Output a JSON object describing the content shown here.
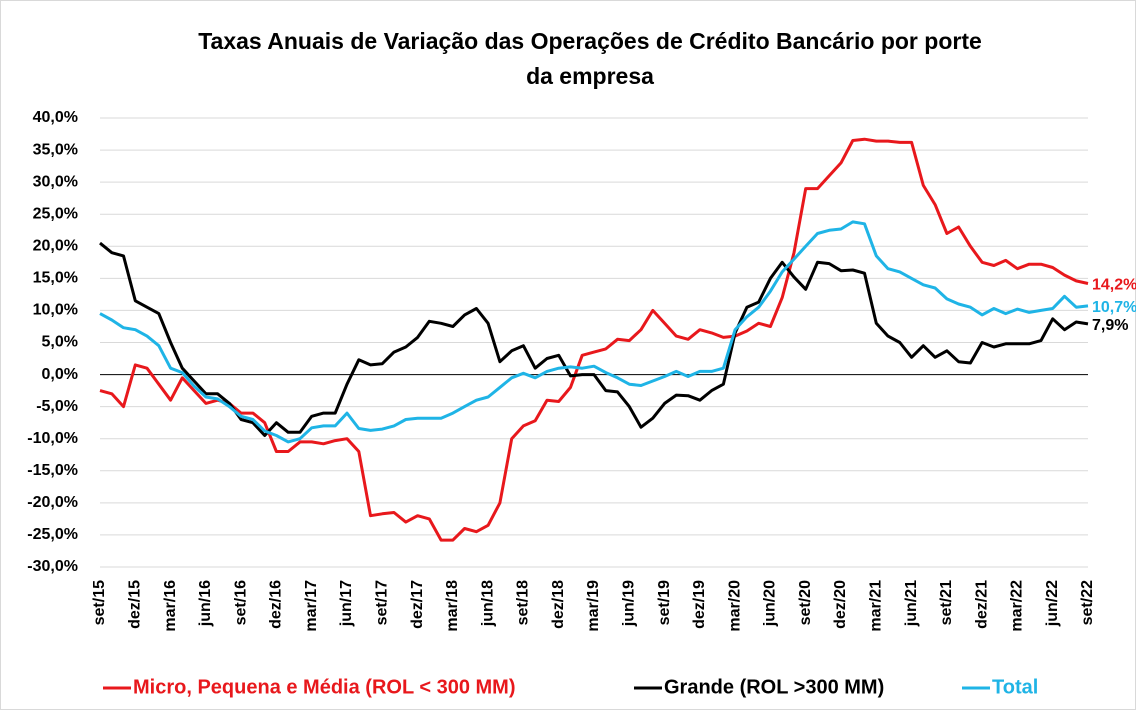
{
  "chart_data": {
    "type": "line",
    "title": [
      "Taxas Anuais de Variação das Operações de Crédito Bancário por porte",
      "da empresa"
    ],
    "categories": [
      "set/15",
      null,
      null,
      "dez/15",
      null,
      null,
      "mar/16",
      null,
      null,
      "jun/16",
      null,
      null,
      "set/16",
      null,
      null,
      "dez/16",
      null,
      null,
      "mar/17",
      null,
      null,
      "jun/17",
      null,
      null,
      "set/17",
      null,
      null,
      "dez/17",
      null,
      null,
      "mar/18",
      null,
      null,
      "jun/18",
      null,
      null,
      "set/18",
      null,
      null,
      "dez/18",
      null,
      null,
      "mar/19",
      null,
      null,
      "jun/19",
      null,
      null,
      "set/19",
      null,
      null,
      "dez/19",
      null,
      null,
      "mar/20",
      null,
      null,
      "jun/20",
      null,
      null,
      "set/20",
      null,
      null,
      "dez/20",
      null,
      null,
      "mar/21",
      null,
      null,
      "jun/21",
      null,
      null,
      "set/21",
      null,
      null,
      "dez/21",
      null,
      null,
      "mar/22",
      null,
      null,
      "jun/22",
      null,
      null,
      "set/22"
    ],
    "series": [
      {
        "name": "Micro, Pequena e Média (ROL < 300 MM)",
        "color": "#e8181c",
        "values": [
          -2.5,
          -3,
          -5,
          1.5,
          1,
          -1.5,
          -4,
          -0.5,
          -2.5,
          -4.5,
          -4,
          -4.5,
          -6,
          -6,
          -7.5,
          -12,
          -12,
          -10.5,
          -10.5,
          -10.8,
          -10.3,
          -10,
          -12,
          -22,
          -21.7,
          -21.5,
          -23,
          -22,
          -22.5,
          -25.8,
          -25.8,
          -24,
          -24.5,
          -23.5,
          -20,
          -10,
          -8,
          -7.2,
          -4,
          -4.2,
          -2,
          3,
          3.5,
          4,
          5.5,
          5.3,
          7,
          10,
          8,
          6,
          5.5,
          7,
          6.5,
          5.8,
          6,
          6.8,
          8,
          7.5,
          12,
          19,
          29,
          29,
          31,
          33,
          36.5,
          36.7,
          36.4,
          36.4,
          36.2,
          36.2,
          29.5,
          26.5,
          22,
          23,
          20,
          17.5,
          17,
          17.8,
          16.5,
          17.2,
          17.2,
          16.7,
          15.5,
          14.6,
          14.2
        ],
        "value_labels": [
          null,
          null,
          null,
          null,
          null,
          null,
          null,
          null,
          null,
          null,
          null,
          null,
          null,
          null,
          null,
          null,
          null,
          null,
          null,
          null,
          null,
          null,
          null,
          null,
          null,
          null,
          null,
          null,
          null,
          null,
          null,
          null,
          null,
          null,
          null,
          null,
          null,
          null,
          null,
          null,
          null,
          null,
          null,
          null,
          null,
          null,
          null,
          null,
          null,
          null,
          null,
          null,
          null,
          null,
          null,
          null,
          null,
          null,
          null,
          null,
          null,
          null,
          null,
          null,
          null,
          null,
          null,
          null,
          null,
          null,
          null,
          null,
          null,
          null,
          null,
          null,
          null,
          null,
          null,
          null,
          null,
          null,
          null,
          null,
          "14,2%"
        ]
      },
      {
        "name": "Grande (ROL >300 MM)",
        "color": "#000000",
        "values": [
          20.5,
          19,
          18.5,
          11.5,
          10.5,
          9.5,
          5,
          1,
          -1,
          -3,
          -3,
          -4.5,
          -7,
          -7.5,
          -9.5,
          -7.5,
          -9,
          -9,
          -6.5,
          -6,
          -6,
          -1.5,
          2.3,
          1.5,
          1.7,
          3.5,
          4.3,
          5.8,
          8.3,
          8,
          7.5,
          9.3,
          10.3,
          8,
          2,
          3.7,
          4.5,
          1,
          2.5,
          3,
          -0.2,
          0,
          0,
          -2.5,
          -2.7,
          -5,
          -8.2,
          -6.8,
          -4.5,
          -3.2,
          -3.3,
          -4,
          -2.5,
          -1.5,
          6.5,
          10.5,
          11.3,
          15,
          17.5,
          15.2,
          13.3,
          17.5,
          17.3,
          16.2,
          16.3,
          15.8,
          8,
          6,
          5,
          2.7,
          4.5,
          2.7,
          3.7,
          2,
          1.8,
          5,
          4.3,
          4.8,
          4.8,
          4.8,
          5.3,
          8.7,
          7,
          8.2,
          7.9
        ],
        "value_labels": [
          null,
          null,
          null,
          null,
          null,
          null,
          null,
          null,
          null,
          null,
          null,
          null,
          null,
          null,
          null,
          null,
          null,
          null,
          null,
          null,
          null,
          null,
          null,
          null,
          null,
          null,
          null,
          null,
          null,
          null,
          null,
          null,
          null,
          null,
          null,
          null,
          null,
          null,
          null,
          null,
          null,
          null,
          null,
          null,
          null,
          null,
          null,
          null,
          null,
          null,
          null,
          null,
          null,
          null,
          null,
          null,
          null,
          null,
          null,
          null,
          null,
          null,
          null,
          null,
          null,
          null,
          null,
          null,
          null,
          null,
          null,
          null,
          null,
          null,
          null,
          null,
          null,
          null,
          null,
          null,
          null,
          null,
          null,
          null,
          "7,9%"
        ]
      },
      {
        "name": "Total",
        "color": "#1fb4e6",
        "values": [
          9.5,
          8.5,
          7.3,
          7,
          6,
          4.5,
          1,
          0.3,
          -1.8,
          -3.5,
          -3.8,
          -5,
          -6.5,
          -7,
          -8.8,
          -9.5,
          -10.5,
          -10,
          -8.3,
          -8,
          -8,
          -6,
          -8.4,
          -8.7,
          -8.5,
          -8,
          -7,
          -6.8,
          -6.8,
          -6.8,
          -6,
          -5,
          -4,
          -3.5,
          -2,
          -0.5,
          0.2,
          -0.5,
          0.5,
          1,
          1.2,
          1,
          1.3,
          0.3,
          -0.5,
          -1.5,
          -1.7,
          -1,
          -0.3,
          0.5,
          -0.3,
          0.5,
          0.5,
          1,
          7,
          9,
          10.5,
          13,
          16,
          18,
          20,
          22,
          22.5,
          22.7,
          23.8,
          23.5,
          18.5,
          16.5,
          16,
          15,
          14,
          13.5,
          11.8,
          11,
          10.5,
          9.3,
          10.3,
          9.5,
          10.2,
          9.7,
          10,
          10.3,
          12.2,
          10.5,
          10.7
        ],
        "value_labels": [
          null,
          null,
          null,
          null,
          null,
          null,
          null,
          null,
          null,
          null,
          null,
          null,
          null,
          null,
          null,
          null,
          null,
          null,
          null,
          null,
          null,
          null,
          null,
          null,
          null,
          null,
          null,
          null,
          null,
          null,
          null,
          null,
          null,
          null,
          null,
          null,
          null,
          null,
          null,
          null,
          null,
          null,
          null,
          null,
          null,
          null,
          null,
          null,
          null,
          null,
          null,
          null,
          null,
          null,
          null,
          null,
          null,
          null,
          null,
          null,
          null,
          null,
          null,
          null,
          null,
          null,
          null,
          null,
          null,
          null,
          null,
          null,
          null,
          null,
          null,
          null,
          null,
          null,
          null,
          null,
          null,
          null,
          null,
          null,
          "10,7%"
        ]
      }
    ],
    "ylim": [
      -30,
      40
    ],
    "yticks": [
      {
        "value": -30,
        "label": "-30,0%"
      },
      {
        "value": -25,
        "label": "-25,0%"
      },
      {
        "value": -20,
        "label": "-20,0%"
      },
      {
        "value": -15,
        "label": "-15,0%"
      },
      {
        "value": -10,
        "label": "-10,0%"
      },
      {
        "value": -5,
        "label": "-5,0%"
      },
      {
        "value": 0,
        "label": "0,0%"
      },
      {
        "value": 5,
        "label": "5,0%"
      },
      {
        "value": 10,
        "label": "10,0%"
      },
      {
        "value": 15,
        "label": "15,0%"
      },
      {
        "value": 20,
        "label": "20,0%"
      },
      {
        "value": 25,
        "label": "25,0%"
      },
      {
        "value": 30,
        "label": "30,0%"
      },
      {
        "value": 35,
        "label": "35,0%"
      },
      {
        "value": 40,
        "label": "40,0%"
      }
    ],
    "grid": true,
    "legend": "bottom"
  }
}
